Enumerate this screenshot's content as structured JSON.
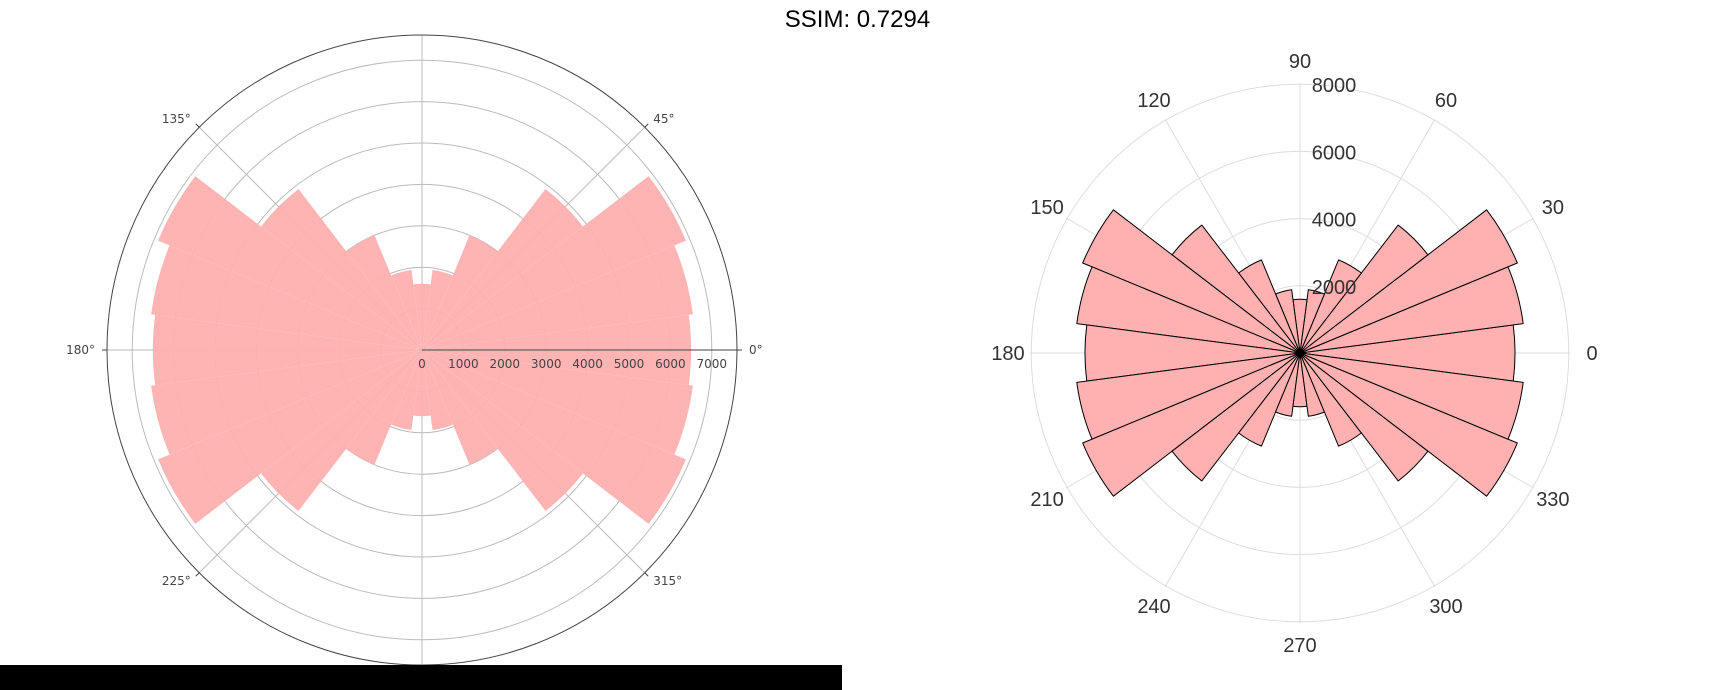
{
  "title": "SSIM: 0.7294",
  "chart_data": [
    {
      "type": "bar",
      "subtype": "polar-rose",
      "theta_deg": [
        0,
        15,
        30,
        45,
        60,
        75,
        90,
        105,
        120,
        135,
        150,
        165,
        180,
        195,
        210,
        225,
        240,
        255,
        270,
        285,
        300,
        315,
        330,
        345
      ],
      "values": [
        6500,
        6600,
        6900,
        4900,
        3000,
        1950,
        1600,
        1950,
        3000,
        4900,
        6900,
        6600,
        6500,
        6600,
        6900,
        4900,
        3000,
        1950,
        1600,
        1950,
        3000,
        4900,
        6900,
        6600
      ],
      "angle_tick_labels": [
        "0°",
        "45°",
        "135°",
        "180°",
        "225°",
        "315°"
      ],
      "radial_tick_labels": [
        "0",
        "1000",
        "2000",
        "3000",
        "4000",
        "5000",
        "6000",
        "7000"
      ],
      "rlim": [
        0,
        7600
      ],
      "bar_color": "#ffb0b0",
      "grid": true
    },
    {
      "type": "bar",
      "subtype": "polar-rose",
      "theta_deg": [
        0,
        15,
        30,
        45,
        60,
        75,
        90,
        105,
        120,
        135,
        150,
        165,
        180,
        195,
        210,
        225,
        240,
        255,
        270,
        285,
        300,
        315,
        330,
        345
      ],
      "values": [
        6400,
        6700,
        7000,
        4800,
        3000,
        1900,
        1600,
        1900,
        3000,
        4800,
        7000,
        6700,
        6400,
        6700,
        7000,
        4800,
        3000,
        1900,
        1600,
        1900,
        3000,
        4800,
        7000,
        6700
      ],
      "angle_tick_labels": [
        "0",
        "30",
        "60",
        "90",
        "120",
        "150",
        "180",
        "210",
        "240",
        "270",
        "300",
        "330"
      ],
      "radial_tick_labels": [
        "2000",
        "4000",
        "6000",
        "8000"
      ],
      "rlim": [
        0,
        8000
      ],
      "bar_color": "#ffb0b0",
      "edge_color": "#000000",
      "grid": true
    }
  ]
}
